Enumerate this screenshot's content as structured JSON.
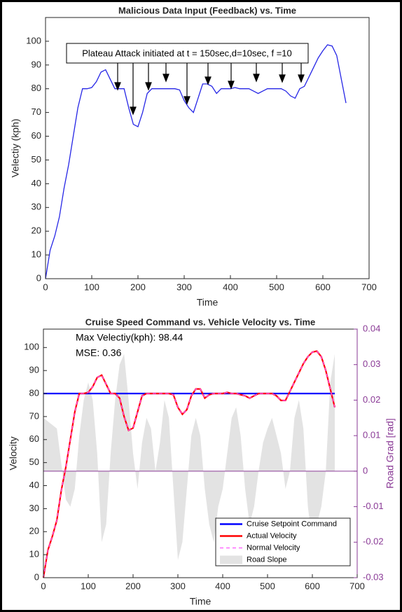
{
  "chart_data": [
    {
      "type": "line",
      "title": "Malicious Data Input (Feedback) vs. Time",
      "xlabel": "Time",
      "ylabel": "Velectiy (kph)",
      "annotations": [
        "Plateau Attack initiated at t = 150sec,d=10sec, f =10"
      ],
      "x": [
        0,
        10,
        20,
        30,
        40,
        50,
        60,
        70,
        80,
        90,
        100,
        110,
        120,
        130,
        140,
        150,
        160,
        170,
        180,
        190,
        200,
        210,
        220,
        230,
        240,
        250,
        260,
        270,
        280,
        290,
        300,
        310,
        320,
        330,
        340,
        350,
        360,
        370,
        380,
        390,
        400,
        410,
        420,
        430,
        440,
        450,
        460,
        470,
        480,
        490,
        500,
        510,
        520,
        530,
        540,
        550,
        560,
        570,
        580,
        590,
        600,
        610,
        620,
        630,
        640,
        650
      ],
      "series": [
        {
          "color": "#2626e6",
          "values": [
            0,
            12,
            18,
            26,
            38,
            48,
            60,
            72,
            80,
            80,
            80.5,
            83,
            87,
            88,
            84,
            80,
            80,
            80,
            72,
            65,
            64,
            70,
            78,
            80,
            80,
            80,
            80,
            80,
            80,
            79.5,
            75,
            72,
            70,
            76,
            82,
            82,
            81,
            78,
            80,
            80,
            80,
            80.5,
            80,
            80,
            80,
            79,
            78,
            79,
            80,
            80,
            80,
            80,
            79,
            77,
            76,
            80,
            81,
            85,
            89,
            93,
            96,
            98.5,
            98,
            94,
            84,
            74
          ]
        }
      ],
      "xlim": [
        0,
        700
      ],
      "xticks": [
        0,
        100,
        200,
        300,
        400,
        500,
        600,
        700
      ],
      "ylim": [
        0,
        110
      ],
      "yticks": [
        0,
        10,
        20,
        30,
        40,
        50,
        60,
        70,
        80,
        90,
        100
      ]
    },
    {
      "type": "line",
      "title": "Cruise Speed Command vs. Vehicle Velocity vs. Time",
      "xlabel": "Time",
      "ylabel": "Velocity",
      "y2label": "Road Grad [rad]",
      "annotations": [
        "Max Velectiy(kph): 98.44",
        "MSE: 0.36"
      ],
      "legend": "lower right",
      "y2color": "#8a3a96",
      "x": [
        0,
        10,
        20,
        30,
        40,
        50,
        60,
        70,
        80,
        90,
        100,
        110,
        120,
        130,
        140,
        150,
        160,
        170,
        180,
        190,
        200,
        210,
        220,
        230,
        240,
        250,
        260,
        270,
        280,
        290,
        300,
        310,
        320,
        330,
        340,
        350,
        360,
        370,
        380,
        390,
        400,
        410,
        420,
        430,
        440,
        450,
        460,
        470,
        480,
        490,
        500,
        510,
        520,
        530,
        540,
        550,
        560,
        570,
        580,
        590,
        600,
        610,
        620,
        630,
        640,
        650
      ],
      "series": [
        {
          "name": "Cruise Setpoint Command",
          "color": "#0000ff",
          "values": [
            80,
            80,
            80,
            80,
            80,
            80,
            80,
            80,
            80,
            80,
            80,
            80,
            80,
            80,
            80,
            80,
            80,
            80,
            80,
            80,
            80,
            80,
            80,
            80,
            80,
            80,
            80,
            80,
            80,
            80,
            80,
            80,
            80,
            80,
            80,
            80,
            80,
            80,
            80,
            80,
            80,
            80,
            80,
            80,
            80,
            80,
            80,
            80,
            80,
            80,
            80,
            80,
            80,
            80,
            80,
            80,
            80,
            80,
            80,
            80,
            80,
            80,
            80,
            80,
            80,
            80
          ]
        },
        {
          "name": "Actual Velocity",
          "color": "#ff0000",
          "values": [
            0,
            12,
            18,
            25,
            38,
            48,
            60,
            72,
            80,
            80,
            80.5,
            83,
            87,
            88,
            84,
            80,
            80,
            78,
            70,
            64,
            65,
            72,
            79,
            80,
            80,
            80,
            80,
            80,
            80,
            79.5,
            74,
            71,
            73,
            79,
            82,
            82,
            78,
            79.5,
            80,
            80,
            80,
            80.5,
            80,
            80,
            79.5,
            79,
            78,
            79,
            80,
            80,
            80,
            80,
            79,
            77,
            77,
            81,
            85,
            89,
            93,
            96,
            98,
            98.44,
            96,
            90,
            82,
            74
          ]
        },
        {
          "name": "Normal Velocity",
          "color": "#ff55ff",
          "style": "dashed",
          "values": [
            0,
            12,
            18,
            25,
            38,
            48,
            60,
            72,
            80,
            80,
            80.5,
            83,
            87,
            88,
            84,
            80,
            80,
            78,
            70,
            64,
            65,
            72,
            79,
            80,
            80,
            80,
            80,
            80,
            80,
            79.5,
            74,
            71,
            73,
            79,
            82,
            82,
            78,
            79.5,
            80,
            80,
            80,
            80.5,
            80,
            80,
            79.5,
            79,
            78,
            79,
            80,
            80,
            80,
            80,
            79,
            77,
            77,
            81,
            85,
            89,
            93,
            96,
            98,
            98.44,
            96,
            90,
            82,
            74
          ]
        },
        {
          "name": "Road Slope",
          "color": "#e3e3e3",
          "type": "area",
          "axis": "y2",
          "values": [
            0.015,
            0.014,
            0.013,
            0.012,
            0.002,
            -0.008,
            -0.01,
            -0.005,
            0.01,
            0.02,
            0.025,
            0.02,
            0.005,
            -0.02,
            -0.015,
            0.005,
            0.02,
            0.03,
            0.033,
            0.02,
            0.005,
            -0.005,
            0.008,
            0.015,
            0.012,
            0,
            0.008,
            0.02,
            0.015,
            -0.005,
            -0.025,
            -0.02,
            -0.005,
            0.01,
            0.015,
            0.01,
            -0.005,
            -0.015,
            -0.02,
            -0.01,
            -0.005,
            0.005,
            0.015,
            0.018,
            0.01,
            -0.005,
            -0.015,
            -0.01,
            0,
            0.008,
            0.012,
            0.015,
            0.01,
            0.005,
            -0.005,
            0,
            0.015,
            0.02,
            0.012,
            -0.01,
            -0.02,
            -0.015,
            -0.01,
            0,
            0.025,
            0.033
          ]
        }
      ],
      "xlim": [
        0,
        700
      ],
      "xticks": [
        0,
        100,
        200,
        300,
        400,
        500,
        600,
        700
      ],
      "ylim": [
        0,
        108
      ],
      "yticks": [
        0,
        10,
        20,
        30,
        40,
        50,
        60,
        70,
        80,
        90,
        100
      ],
      "y2lim": [
        -0.03,
        0.04
      ],
      "y2ticks": [
        -0.03,
        -0.02,
        -0.01,
        0,
        0.01,
        0.02,
        0.03,
        0.04
      ]
    }
  ]
}
